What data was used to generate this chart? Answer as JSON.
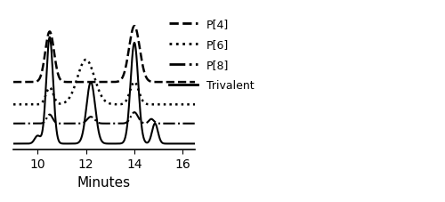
{
  "xlim": [
    9.0,
    16.5
  ],
  "ylim": [
    -0.05,
    1.15
  ],
  "xlabel": "Minutes",
  "xticks": [
    10,
    12,
    14,
    16
  ],
  "background_color": "#ffffff",
  "legend_labels": [
    "P[4]",
    "P[6]",
    "P[8]",
    "Trivalent"
  ],
  "legend_linestyles": [
    "--",
    ":",
    "-.",
    "-"
  ],
  "legend_linewidths": [
    2.0,
    2.0,
    2.0,
    2.0
  ],
  "line_color": "#000000"
}
